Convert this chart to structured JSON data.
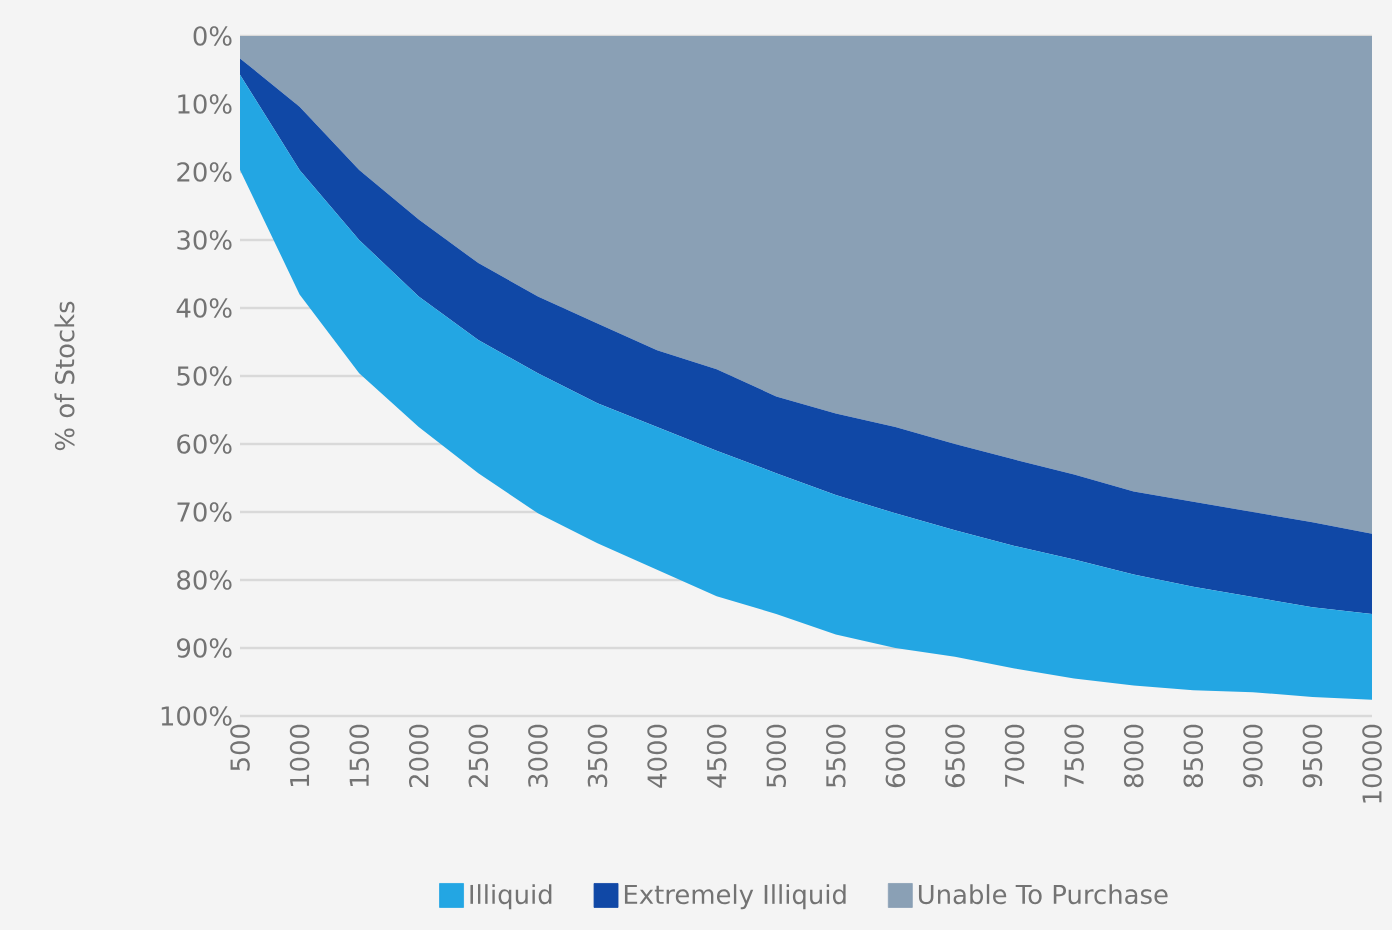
{
  "chart_data": {
    "type": "area",
    "stacked": true,
    "ylabel": "%  of Stocks",
    "categories": [
      "500",
      "1000",
      "1500",
      "2000",
      "2500",
      "3000",
      "3500",
      "4000",
      "4500",
      "5000",
      "5500",
      "6000",
      "6500",
      "7000",
      "7500",
      "8000",
      "8500",
      "9000",
      "9500",
      "10000"
    ],
    "series": [
      {
        "name": "Unable To Purchase",
        "color": "#8aa0b5",
        "values": [
          3.3,
          10.4,
          19.7,
          27,
          33.4,
          38.3,
          42.3,
          46.2,
          49,
          53,
          55.5,
          57.5,
          60,
          62.3,
          64.5,
          67,
          68.5,
          70,
          71.5,
          73.2
        ]
      },
      {
        "name": "Extremely Illiquid",
        "color": "#1048a6",
        "values": [
          2.4,
          9.3,
          10.3,
          11.3,
          11.3,
          11.3,
          11.7,
          11.3,
          12,
          11.3,
          12,
          12.7,
          12.7,
          12.7,
          12.5,
          12.2,
          12.5,
          12.5,
          12.5,
          11.8
        ]
      },
      {
        "name": "Illiquid",
        "color": "#23a6e3",
        "values": [
          14,
          18.3,
          19.6,
          19.2,
          19.6,
          20.6,
          20.6,
          21,
          21.4,
          20.7,
          20.5,
          19.8,
          18.6,
          18,
          17.5,
          16.3,
          15.2,
          14,
          13.2,
          12.6
        ]
      }
    ],
    "ylim": [
      100,
      0
    ],
    "yticks": [
      {
        "value": 0,
        "label": "0%"
      },
      {
        "value": 10,
        "label": "10%"
      },
      {
        "value": 20,
        "label": "20%"
      },
      {
        "value": 30,
        "label": "30%"
      },
      {
        "value": 40,
        "label": "40%"
      },
      {
        "value": 50,
        "label": "50%"
      },
      {
        "value": 60,
        "label": "60%"
      },
      {
        "value": 70,
        "label": "70%"
      },
      {
        "value": 80,
        "label": "80%"
      },
      {
        "value": 90,
        "label": "90%"
      },
      {
        "value": 100,
        "label": "100%"
      }
    ],
    "grid": "y",
    "legend": "bottom"
  }
}
